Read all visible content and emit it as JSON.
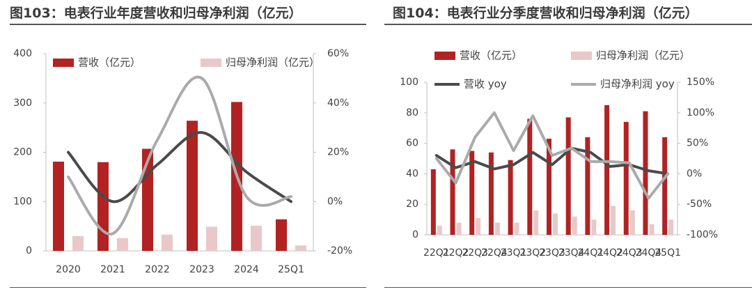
{
  "figures": [
    {
      "title": "图103：电表行业年度营收和归母净利润（亿元）"
    },
    {
      "title": "图104：电表行业分季度营收和归母净利润（亿元）"
    }
  ],
  "chart_data": [
    {
      "type": "bar",
      "title": "图103：电表行业年度营收和归母净利润（亿元）",
      "categories": [
        "2020",
        "2021",
        "2022",
        "2023",
        "2024",
        "25Q1"
      ],
      "series": [
        {
          "name": "营收（亿元）",
          "type": "bar",
          "axis": "left",
          "color": "#B22222",
          "values": [
            181,
            180,
            207,
            264,
            302,
            64
          ]
        },
        {
          "name": "归母净利润（亿元）",
          "type": "bar",
          "axis": "left",
          "color": "#E8C8C8",
          "values": [
            30,
            26,
            33,
            49,
            51,
            11
          ]
        },
        {
          "name": "",
          "type": "line",
          "axis": "right",
          "color": "#4a4a4a",
          "values": [
            20,
            0,
            15,
            28,
            12,
            0
          ]
        },
        {
          "name": "",
          "type": "line",
          "axis": "right",
          "color": "#aaaaaa",
          "values": [
            10,
            -13,
            25,
            50,
            2,
            2
          ]
        }
      ],
      "ylim_left": [
        0,
        400
      ],
      "yticks_left": [
        0,
        100,
        200,
        300,
        400
      ],
      "ylim_right": [
        -20,
        60
      ],
      "yticks_right": [
        "-20%",
        "0%",
        "20%",
        "40%",
        "60%"
      ],
      "yticks_right_values": [
        -20,
        0,
        20,
        40,
        60
      ],
      "legend": "top"
    },
    {
      "type": "bar",
      "title": "图104：电表行业分季度营收和归母净利润（亿元）",
      "categories": [
        "22Q1",
        "22Q2",
        "22Q3",
        "22Q4",
        "23Q1",
        "23Q2",
        "23Q3",
        "23Q4",
        "24Q1",
        "24Q2",
        "24Q3",
        "24Q4",
        "25Q1"
      ],
      "series": [
        {
          "name": "营收（亿元）",
          "type": "bar",
          "axis": "left",
          "color": "#B22222",
          "values": [
            43,
            56,
            55,
            54,
            49,
            76,
            63,
            77,
            64,
            85,
            74,
            81,
            64
          ]
        },
        {
          "name": "归母净利润（亿元）",
          "type": "bar",
          "axis": "left",
          "color": "#E8C8C8",
          "values": [
            6,
            8,
            11,
            8,
            8,
            16,
            14,
            12,
            10,
            19,
            16,
            7,
            10
          ]
        },
        {
          "name": "营收 yoy",
          "type": "line",
          "axis": "right",
          "color": "#4a4a4a",
          "values": [
            30,
            10,
            20,
            8,
            15,
            35,
            15,
            42,
            35,
            12,
            15,
            5,
            0
          ]
        },
        {
          "name": "归母净利润 yoy",
          "type": "line",
          "axis": "right",
          "color": "#aaaaaa",
          "values": [
            25,
            -15,
            60,
            100,
            38,
            95,
            30,
            42,
            20,
            20,
            18,
            -40,
            0
          ]
        }
      ],
      "ylim_left": [
        0,
        100
      ],
      "yticks_left": [
        0,
        20,
        40,
        60,
        80,
        100
      ],
      "ylim_right": [
        -100,
        150
      ],
      "yticks_right": [
        "-100%",
        "-50%",
        "0%",
        "50%",
        "100%",
        "150%"
      ],
      "yticks_right_values": [
        -100,
        -50,
        0,
        50,
        100,
        150
      ],
      "legend": "top"
    }
  ]
}
